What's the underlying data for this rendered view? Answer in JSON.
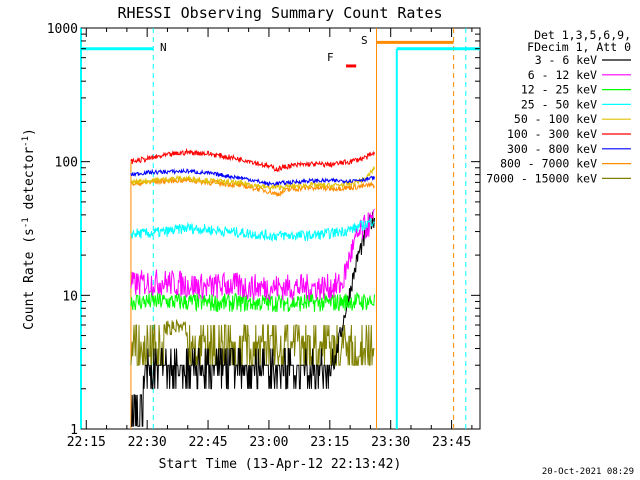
{
  "chart_data": {
    "type": "line",
    "title": "RHESSI Observing Summary Count Rates",
    "xlabel": "Start Time (13-Apr-12 22:13:42)",
    "ylabel_main": "Count Rate (s",
    "ylabel_sup1": "-1",
    "ylabel_mid": " detector",
    "ylabel_sup2": "-1",
    "ylabel_end": ")",
    "yscale": "log",
    "ylim": [
      1,
      1000
    ],
    "xlim_minutes": [
      13.7,
      112
    ],
    "x_ticks": [
      {
        "m": 15,
        "label": "22:15"
      },
      {
        "m": 30,
        "label": "22:30"
      },
      {
        "m": 45,
        "label": "22:45"
      },
      {
        "m": 60,
        "label": "23:00"
      },
      {
        "m": 75,
        "label": "23:15"
      },
      {
        "m": 90,
        "label": "23:30"
      },
      {
        "m": 105,
        "label": "23:45"
      }
    ],
    "y_ticks": [
      {
        "v": 1,
        "label": "1"
      },
      {
        "v": 10,
        "label": "10"
      },
      {
        "v": 100,
        "label": "100"
      },
      {
        "v": 1000,
        "label": "1000"
      }
    ],
    "legend_header": [
      "Det 1,3,5,6,9,",
      "FDecim 1, Att 0"
    ],
    "series": [
      {
        "name": "3 - 6 keV",
        "color": "#000000",
        "points": [
          [
            26,
            1.5
          ],
          [
            28,
            1.6
          ],
          [
            30,
            3.0
          ],
          [
            40,
            3.2
          ],
          [
            50,
            3.0
          ],
          [
            60,
            3.0
          ],
          [
            70,
            3.0
          ],
          [
            76,
            3.0
          ],
          [
            79,
            8
          ],
          [
            82,
            20
          ],
          [
            85,
            35
          ],
          [
            86,
            38
          ]
        ]
      },
      {
        "name": "6 - 12 keV",
        "color": "#ff00ff",
        "points": [
          [
            26,
            12
          ],
          [
            30,
            12.5
          ],
          [
            35,
            12.5
          ],
          [
            40,
            12
          ],
          [
            45,
            11.5
          ],
          [
            50,
            12
          ],
          [
            55,
            11.5
          ],
          [
            60,
            11.5
          ],
          [
            65,
            11.5
          ],
          [
            70,
            11.5
          ],
          [
            75,
            11.5
          ],
          [
            78,
            12
          ],
          [
            80,
            20
          ],
          [
            82,
            28
          ],
          [
            84,
            33
          ],
          [
            86,
            36
          ]
        ]
      },
      {
        "name": "12 - 25 keV",
        "color": "#00ff00",
        "points": [
          [
            26,
            9
          ],
          [
            35,
            9
          ],
          [
            45,
            8.8
          ],
          [
            55,
            8.8
          ],
          [
            65,
            8.8
          ],
          [
            75,
            8.8
          ],
          [
            80,
            9
          ],
          [
            86,
            9
          ]
        ]
      },
      {
        "name": "25 - 50 keV",
        "color": "#00ffff",
        "points": [
          [
            26,
            29
          ],
          [
            30,
            29
          ],
          [
            35,
            30
          ],
          [
            40,
            32
          ],
          [
            45,
            31
          ],
          [
            50,
            30
          ],
          [
            55,
            29
          ],
          [
            60,
            28
          ],
          [
            65,
            28
          ],
          [
            70,
            28
          ],
          [
            75,
            29
          ],
          [
            80,
            31
          ],
          [
            84,
            34
          ],
          [
            86,
            37
          ]
        ]
      },
      {
        "name": "50 - 100 keV",
        "color": "#e0c000",
        "points": [
          [
            26,
            70
          ],
          [
            30,
            72
          ],
          [
            35,
            74
          ],
          [
            40,
            75
          ],
          [
            45,
            72
          ],
          [
            50,
            70
          ],
          [
            55,
            68
          ],
          [
            60,
            64
          ],
          [
            65,
            65
          ],
          [
            70,
            67
          ],
          [
            75,
            66
          ],
          [
            80,
            68
          ],
          [
            84,
            75
          ],
          [
            86,
            90
          ]
        ]
      },
      {
        "name": "100 - 300 keV",
        "color": "#ff0000",
        "points": [
          [
            26,
            100
          ],
          [
            30,
            105
          ],
          [
            35,
            112
          ],
          [
            40,
            118
          ],
          [
            45,
            115
          ],
          [
            50,
            108
          ],
          [
            55,
            102
          ],
          [
            60,
            92
          ],
          [
            62,
            88
          ],
          [
            65,
            93
          ],
          [
            70,
            96
          ],
          [
            75,
            95
          ],
          [
            80,
            100
          ],
          [
            84,
            108
          ],
          [
            86,
            115
          ]
        ]
      },
      {
        "name": "300 - 800 keV",
        "color": "#0000ff",
        "points": [
          [
            26,
            80
          ],
          [
            30,
            83
          ],
          [
            35,
            84
          ],
          [
            40,
            85
          ],
          [
            45,
            82
          ],
          [
            50,
            78
          ],
          [
            55,
            74
          ],
          [
            60,
            68
          ],
          [
            65,
            70
          ],
          [
            70,
            72
          ],
          [
            75,
            72
          ],
          [
            80,
            72
          ],
          [
            84,
            74
          ],
          [
            86,
            76
          ]
        ]
      },
      {
        "name": "800 - 7000 keV",
        "color": "#ff8c00",
        "points": [
          [
            26,
            68
          ],
          [
            30,
            70
          ],
          [
            35,
            72
          ],
          [
            40,
            73
          ],
          [
            45,
            70
          ],
          [
            50,
            68
          ],
          [
            55,
            65
          ],
          [
            60,
            60
          ],
          [
            62,
            57
          ],
          [
            65,
            62
          ],
          [
            70,
            64
          ],
          [
            75,
            63
          ],
          [
            80,
            64
          ],
          [
            84,
            66
          ],
          [
            86,
            67
          ]
        ]
      },
      {
        "name": "7000 - 15000 keV",
        "color": "#808000",
        "points": [
          [
            26,
            3.8
          ],
          [
            30,
            4.2
          ],
          [
            35,
            5.5
          ],
          [
            40,
            4.5
          ],
          [
            45,
            4.0
          ],
          [
            50,
            3.6
          ],
          [
            55,
            3.6
          ],
          [
            60,
            4.0
          ],
          [
            65,
            3.6
          ],
          [
            70,
            3.6
          ],
          [
            75,
            3.5
          ],
          [
            80,
            4.2
          ],
          [
            86,
            4.6
          ]
        ]
      }
    ],
    "annotations": [
      {
        "label": "N",
        "color": "#00ffff",
        "m": 31.5
      },
      {
        "label": "S",
        "color": "#ff8c00",
        "m": 86.5
      },
      {
        "label": "F",
        "color": "#ff0000",
        "m": 79
      }
    ],
    "footer_timestamp": "20-Oct-2021 08:29"
  }
}
